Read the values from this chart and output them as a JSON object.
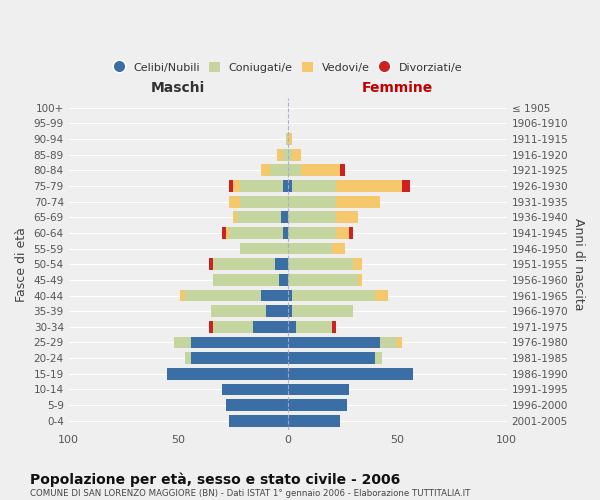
{
  "age_groups": [
    "0-4",
    "5-9",
    "10-14",
    "15-19",
    "20-24",
    "25-29",
    "30-34",
    "35-39",
    "40-44",
    "45-49",
    "50-54",
    "55-59",
    "60-64",
    "65-69",
    "70-74",
    "75-79",
    "80-84",
    "85-89",
    "90-94",
    "95-99",
    "100+"
  ],
  "birth_years": [
    "2001-2005",
    "1996-2000",
    "1991-1995",
    "1986-1990",
    "1981-1985",
    "1976-1980",
    "1971-1975",
    "1966-1970",
    "1961-1965",
    "1956-1960",
    "1951-1955",
    "1946-1950",
    "1941-1945",
    "1936-1940",
    "1931-1935",
    "1926-1930",
    "1921-1925",
    "1916-1920",
    "1911-1915",
    "1906-1910",
    "≤ 1905"
  ],
  "maschi": {
    "celibi": [
      27,
      28,
      30,
      55,
      44,
      44,
      16,
      10,
      12,
      4,
      6,
      0,
      2,
      3,
      0,
      2,
      0,
      0,
      0,
      0,
      0
    ],
    "coniugati": [
      0,
      0,
      0,
      0,
      3,
      8,
      18,
      25,
      35,
      30,
      28,
      22,
      25,
      20,
      22,
      20,
      8,
      2,
      1,
      0,
      0
    ],
    "vedovi": [
      0,
      0,
      0,
      0,
      0,
      0,
      0,
      0,
      2,
      0,
      0,
      0,
      1,
      2,
      5,
      3,
      4,
      3,
      0,
      0,
      0
    ],
    "divorziati": [
      0,
      0,
      0,
      0,
      0,
      0,
      2,
      0,
      0,
      0,
      2,
      0,
      2,
      0,
      0,
      2,
      0,
      0,
      0,
      0,
      0
    ]
  },
  "femmine": {
    "nubili": [
      24,
      27,
      28,
      57,
      40,
      42,
      4,
      2,
      2,
      0,
      0,
      0,
      0,
      0,
      0,
      2,
      0,
      0,
      0,
      0,
      0
    ],
    "coniugate": [
      0,
      0,
      0,
      0,
      3,
      8,
      16,
      28,
      38,
      32,
      30,
      20,
      22,
      22,
      22,
      20,
      6,
      2,
      0,
      0,
      0
    ],
    "vedove": [
      0,
      0,
      0,
      0,
      0,
      2,
      0,
      0,
      6,
      2,
      4,
      6,
      6,
      10,
      20,
      30,
      18,
      4,
      2,
      0,
      0
    ],
    "divorziate": [
      0,
      0,
      0,
      0,
      0,
      0,
      2,
      0,
      0,
      0,
      0,
      0,
      2,
      0,
      0,
      4,
      2,
      0,
      0,
      0,
      0
    ]
  },
  "colors": {
    "celibi_nubili": "#3a6ea5",
    "coniugati": "#c5d5a0",
    "vedovi": "#f5c86e",
    "divorziati": "#cc2222"
  },
  "xlim": 100,
  "title": "Popolazione per età, sesso e stato civile - 2006",
  "subtitle": "COMUNE DI SAN LORENZO MAGGIORE (BN) - Dati ISTAT 1° gennaio 2006 - Elaborazione TUTTITALIA.IT",
  "ylabel_left": "Fasce di età",
  "ylabel_right": "Anni di nascita",
  "xlabel_maschi": "Maschi",
  "xlabel_femmine": "Femmine",
  "background_color": "#efefef",
  "bar_height": 0.75
}
